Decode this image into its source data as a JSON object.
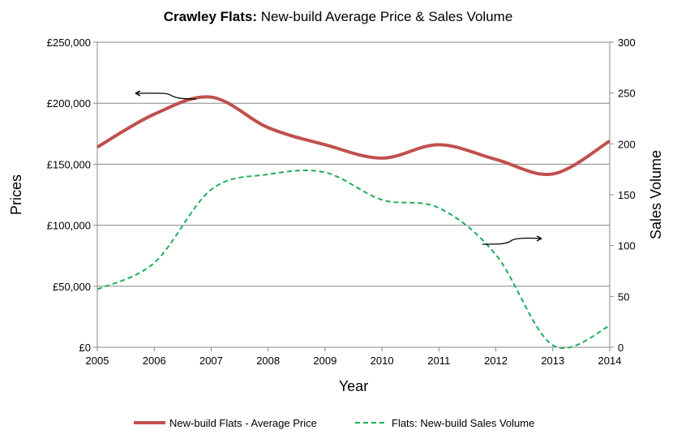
{
  "chart_data": {
    "type": "line",
    "title_bold": "Crawley Flats:",
    "title_rest": " New-build Average Price & Sales Volume",
    "xlabel": "Year",
    "ylabel": "Prices",
    "y2label": "Sales Volume",
    "x": [
      2005,
      2006,
      2007,
      2008,
      2009,
      2010,
      2011,
      2012,
      2013,
      2014
    ],
    "xlim": [
      2005,
      2014
    ],
    "ylim": [
      0,
      250000
    ],
    "y2lim": [
      0,
      300
    ],
    "yticks": [
      "£0",
      "£50,000",
      "£100,000",
      "£150,000",
      "£200,000",
      "£250,000"
    ],
    "y2ticks": [
      "0",
      "50",
      "100",
      "150",
      "200",
      "250",
      "300"
    ],
    "xticks": [
      "2005",
      "2006",
      "2007",
      "2008",
      "2009",
      "2010",
      "2011",
      "2012",
      "2013",
      "2014"
    ],
    "grid": "horizontal",
    "legend_position": "bottom",
    "series": [
      {
        "name": "New-build Flats - Average Price",
        "axis": "left",
        "style": "solid",
        "color": "#C0504D",
        "values": [
          164000,
          191000,
          205000,
          180000,
          166000,
          155000,
          166000,
          154000,
          142000,
          169000
        ]
      },
      {
        "name": "Flats: New-build Sales Volume",
        "axis": "right",
        "style": "dashed",
        "color": "#1EAE5A",
        "values": [
          57,
          83,
          155,
          170,
          172,
          145,
          137,
          91,
          2,
          21
        ]
      }
    ]
  }
}
